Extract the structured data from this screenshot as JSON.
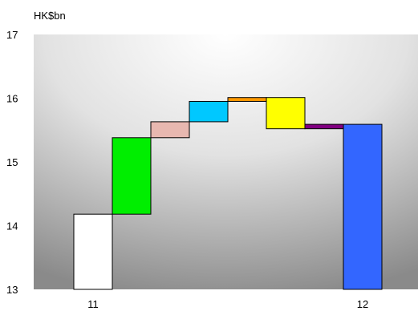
{
  "chart_data": {
    "type": "bar",
    "subtype": "waterfall",
    "unit_label": "HK$bn",
    "ylim": [
      13,
      17
    ],
    "y_ticks": [
      13,
      14,
      15,
      16,
      17
    ],
    "x_tick_labels": [
      "11",
      "12"
    ],
    "grid": false,
    "background": "gradient",
    "bars": [
      {
        "from": 13.0,
        "to": 14.18,
        "color": "#ffffff",
        "x_label": "11"
      },
      {
        "from": 14.18,
        "to": 15.38,
        "color": "#00ee00"
      },
      {
        "from": 15.38,
        "to": 15.63,
        "color": "#e8b8b0"
      },
      {
        "from": 15.63,
        "to": 15.95,
        "color": "#00c8ff"
      },
      {
        "from": 15.95,
        "to": 16.01,
        "color": "#ff9900"
      },
      {
        "from": 16.01,
        "to": 15.52,
        "color": "#ffff00"
      },
      {
        "from": 15.52,
        "to": 15.59,
        "color": "#800080"
      },
      {
        "from": 13.0,
        "to": 15.59,
        "color": "#3366ff",
        "x_label": "12"
      }
    ]
  }
}
